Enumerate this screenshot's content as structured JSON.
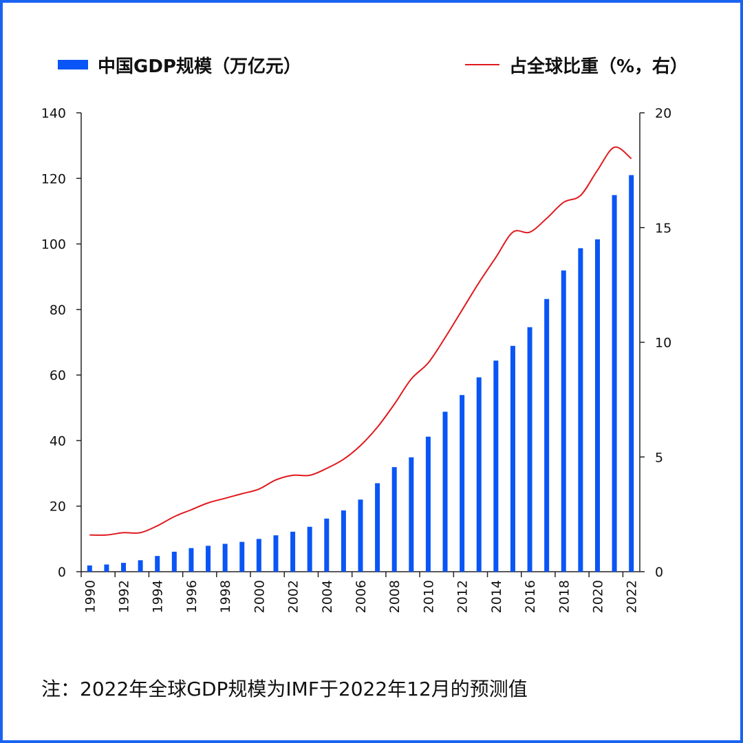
{
  "legend": {
    "bar_label": "中国GDP规模（万亿元）",
    "line_label": "占全球比重（%，右）",
    "bar_color": "#0a55f5",
    "line_color": "#e0191d"
  },
  "note": "注：2022年全球GDP规模为IMF于2022年12月的预测值",
  "chart_data": {
    "type": "bar+line",
    "x_tick_labels": [
      "1990",
      "1992",
      "1994",
      "1996",
      "1998",
      "2000",
      "2002",
      "2004",
      "2006",
      "2008",
      "2010",
      "2012",
      "2014",
      "2016",
      "2018",
      "2020",
      "2022"
    ],
    "y_left_ticks": [
      "0",
      "20",
      "40",
      "60",
      "80",
      "100",
      "120",
      "140"
    ],
    "y_right_ticks": [
      "0",
      "5",
      "10",
      "15",
      "20"
    ],
    "ylim_left": [
      0,
      140
    ],
    "ylim_right": [
      0,
      20
    ],
    "grid": false,
    "legend_position": "top",
    "categories": [
      1990,
      1991,
      1992,
      1993,
      1994,
      1995,
      1996,
      1997,
      1998,
      1999,
      2000,
      2001,
      2002,
      2003,
      2004,
      2005,
      2006,
      2007,
      2008,
      2009,
      2010,
      2011,
      2012,
      2013,
      2014,
      2015,
      2016,
      2017,
      2018,
      2019,
      2020,
      2021,
      2022
    ],
    "series": [
      {
        "name": "中国GDP规模（万亿元）",
        "type": "bar",
        "axis": "left",
        "values": [
          1.9,
          2.2,
          2.7,
          3.5,
          4.8,
          6.1,
          7.2,
          7.9,
          8.5,
          9.1,
          10.0,
          11.1,
          12.2,
          13.7,
          16.2,
          18.7,
          22.0,
          27.0,
          31.9,
          34.9,
          41.2,
          48.8,
          53.9,
          59.3,
          64.4,
          68.9,
          74.6,
          83.2,
          91.9,
          98.7,
          101.4,
          114.9,
          121.0
        ]
      },
      {
        "name": "占全球比重（%，右）",
        "type": "line",
        "axis": "right",
        "values": [
          1.6,
          1.6,
          1.7,
          1.7,
          2.0,
          2.4,
          2.7,
          3.0,
          3.2,
          3.4,
          3.6,
          4.0,
          4.2,
          4.2,
          4.5,
          4.9,
          5.5,
          6.3,
          7.3,
          8.4,
          9.1,
          10.2,
          11.4,
          12.6,
          13.7,
          14.8,
          14.8,
          15.4,
          16.1,
          16.4,
          17.5,
          18.5,
          18.0
        ]
      }
    ]
  }
}
